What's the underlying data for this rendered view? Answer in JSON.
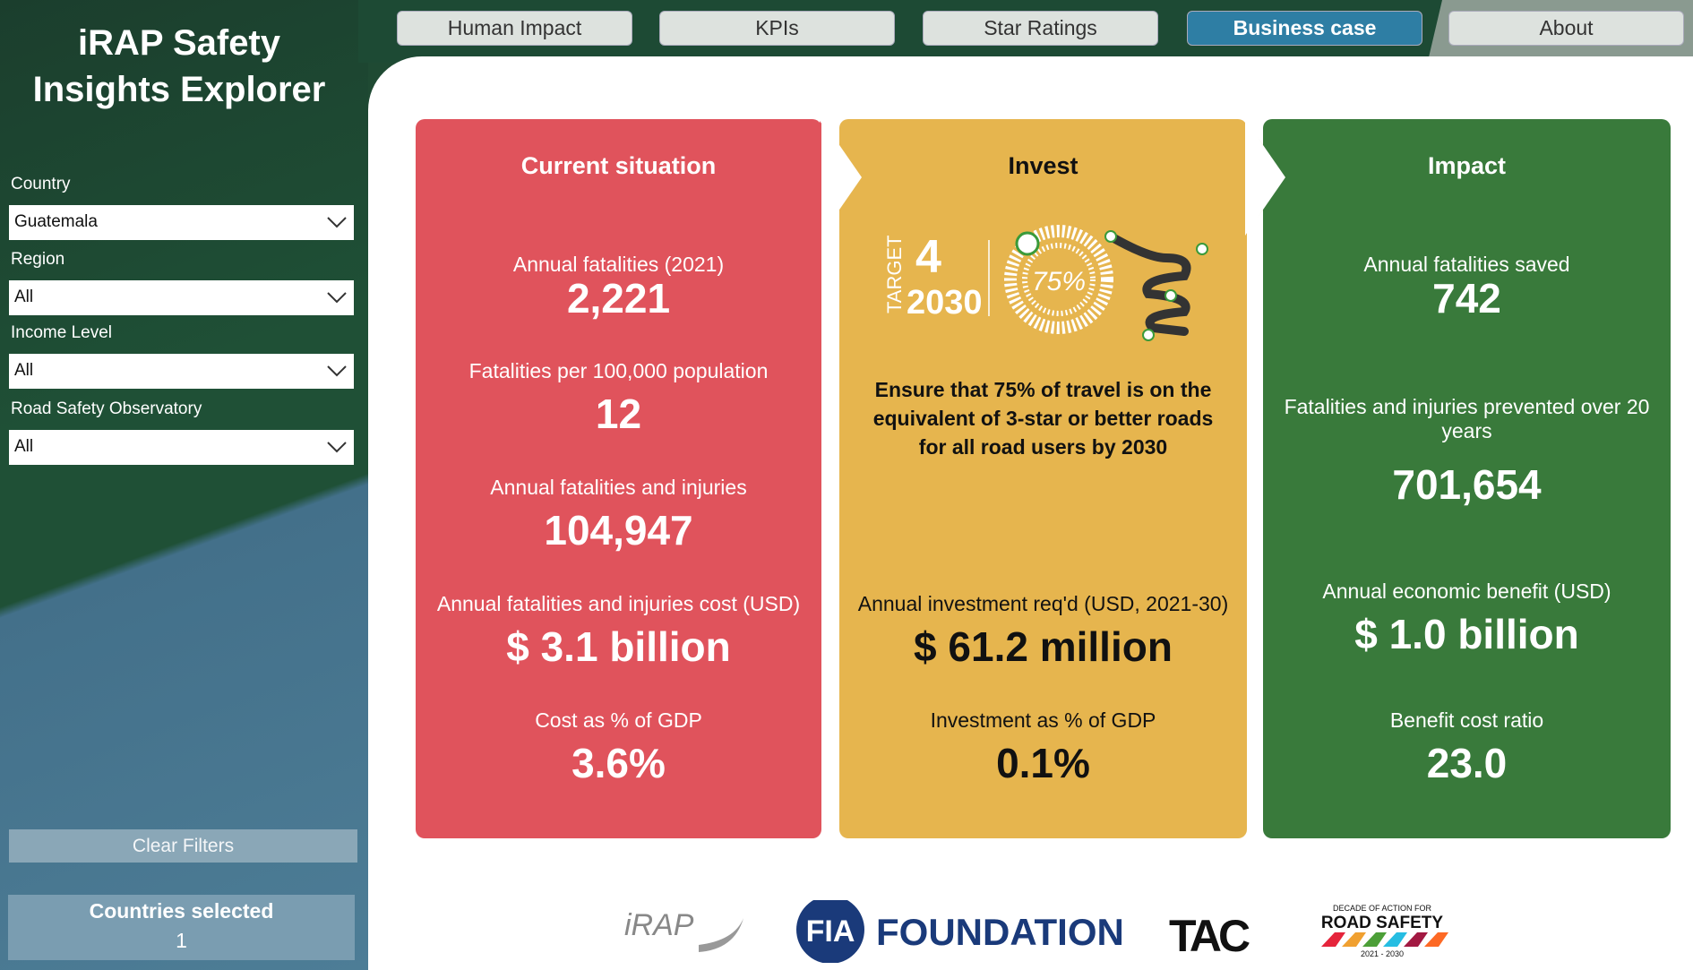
{
  "sidebar": {
    "title_lines": [
      "iRAP Safety",
      "Insights Explorer"
    ],
    "filters": [
      {
        "label": "Country",
        "value": "Guatemala"
      },
      {
        "label": "Region",
        "value": "All"
      },
      {
        "label": "Income Level",
        "value": "All"
      },
      {
        "label": "Road Safety Observatory",
        "value": "All"
      }
    ],
    "clear_button": "Clear Filters",
    "countries_selected": {
      "label": "Countries selected",
      "value": 1
    }
  },
  "tabs": [
    {
      "label": "Human Impact",
      "active": false
    },
    {
      "label": "KPIs",
      "active": false
    },
    {
      "label": "Star Ratings",
      "active": false
    },
    {
      "label": "Business case",
      "active": true
    },
    {
      "label": "About",
      "active": false
    }
  ],
  "panels": [
    {
      "title": "Current situation",
      "color": "#e0535c",
      "text_color": "#ffffff",
      "metrics": [
        {
          "label": "Annual fatalities (2021)",
          "value": "2,221"
        },
        {
          "label": "Fatalities per 100,000 population",
          "value": "12"
        },
        {
          "label": "Annual fatalities and injuries",
          "value": "104,947"
        },
        {
          "label": "Annual fatalities and injuries cost (USD)",
          "value": "$ 3.1 billion"
        },
        {
          "label": "Cost as % of GDP",
          "value": "3.6%"
        }
      ]
    },
    {
      "title": "Invest",
      "color": "#e6b54e",
      "text_color": "#111111",
      "target": {
        "word": "TARGET",
        "number": "4",
        "year": "2030",
        "percent": "75%"
      },
      "description": "Ensure that 75% of travel is on the equivalent of 3-star or better roads for all road users by 2030",
      "metrics": [
        {
          "label": "Annual investment req'd (USD, 2021-30)",
          "value": "$ 61.2 million"
        },
        {
          "label": "Investment as % of GDP",
          "value": "0.1%"
        }
      ]
    },
    {
      "title": "Impact",
      "color": "#397a3b",
      "text_color": "#ffffff",
      "metrics": [
        {
          "label": "Annual fatalities saved",
          "value": "742"
        },
        {
          "label": "Fatalities and injuries prevented over 20 years",
          "value": "701,654"
        },
        {
          "label": "Annual economic benefit (USD)",
          "value": "$ 1.0 billion"
        },
        {
          "label": "Benefit cost ratio",
          "value": "23.0"
        }
      ]
    }
  ],
  "logos": {
    "irap": "iRAP",
    "fia": "FIA",
    "foundation": "FOUNDATION",
    "tac": "TAC",
    "decade_top": "DECADE OF ACTION FOR",
    "decade_main": "ROAD SAFETY",
    "decade_years": "2021 - 2030"
  }
}
